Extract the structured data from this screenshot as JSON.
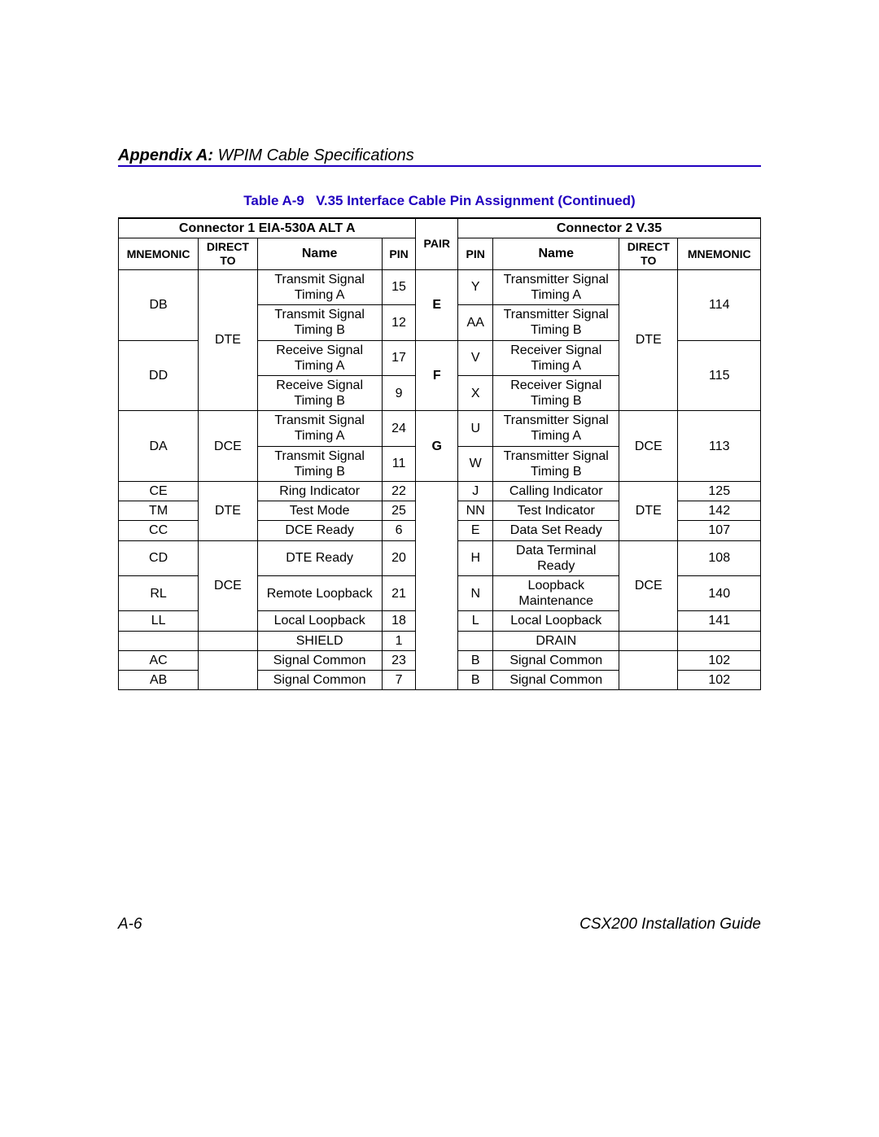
{
  "header": {
    "appendix": "Appendix A:",
    "title_rest": " WPIM Cable Specifications"
  },
  "table": {
    "caption_label": "Table A-9",
    "caption_text": "V.35 Interface Cable Pin Assignment (Continued)",
    "connector1_header": "Connector 1 EIA-530A ALT A",
    "connector2_header": "Connector 2 V.35",
    "col_mnemonic": "MNEMONIC",
    "col_direct_to_line1": "DIRECT",
    "col_direct_to_line2": "TO",
    "col_name": "Name",
    "col_pin": "PIN",
    "col_pair": "PAIR",
    "rows": {
      "r1": {
        "mnem1": "DB",
        "dir1": "DTE",
        "name1": "Transmit Signal Timing A",
        "pin1": "15",
        "pair": "E",
        "pin2": "Y",
        "name2": "Transmitter Signal Timing A",
        "dir2": "DTE",
        "mnem2": "114"
      },
      "r2": {
        "name1": "Transmit Signal Timing B",
        "pin1": "12",
        "pin2": "AA",
        "name2": "Transmitter Signal Timing B"
      },
      "r3": {
        "mnem1": "DD",
        "name1": "Receive Signal Timing A",
        "pin1": "17",
        "pair": "F",
        "pin2": "V",
        "name2": "Receiver Signal Timing A",
        "mnem2": "115"
      },
      "r4": {
        "name1": "Receive Signal Timing B",
        "pin1": "9",
        "pin2": "X",
        "name2": "Receiver Signal Timing B"
      },
      "r5": {
        "mnem1": "DA",
        "dir1": "DCE",
        "name1": "Transmit Signal Timing A",
        "pin1": "24",
        "pair": "G",
        "pin2": "U",
        "name2": "Transmitter Signal Timing A",
        "dir2": "DCE",
        "mnem2": "113"
      },
      "r6": {
        "name1": "Transmit Signal Timing B",
        "pin1": "11",
        "pin2": "W",
        "name2": "Transmitter Signal Timing B"
      },
      "r7": {
        "mnem1": "CE",
        "dir1": "DTE",
        "name1": "Ring Indicator",
        "pin1": "22",
        "pair": "",
        "pin2": "J",
        "name2": "Calling Indicator",
        "dir2": "DTE",
        "mnem2": "125"
      },
      "r8": {
        "mnem1": "TM",
        "name1": "Test Mode",
        "pin1": "25",
        "pin2": "NN",
        "name2": "Test Indicator",
        "mnem2": "142"
      },
      "r9": {
        "mnem1": "CC",
        "name1": "DCE Ready",
        "pin1": "6",
        "pin2": "E",
        "name2": "Data Set Ready",
        "mnem2": "107"
      },
      "r10": {
        "mnem1": "CD",
        "dir1": "DCE",
        "name1": "DTE Ready",
        "pin1": "20",
        "pin2": "H",
        "name2": "Data Terminal Ready",
        "dir2": "DCE",
        "mnem2": "108"
      },
      "r11": {
        "mnem1": "RL",
        "name1": "Remote Loopback",
        "pin1": "21",
        "pin2": "N",
        "name2": "Loopback Maintenance",
        "mnem2": "140"
      },
      "r12": {
        "mnem1": "LL",
        "name1": "Local Loopback",
        "pin1": "18",
        "pin2": "L",
        "name2": "Local Loopback",
        "mnem2": "141"
      },
      "r13": {
        "mnem1": "",
        "dir1": "",
        "name1": "SHIELD",
        "pin1": "1",
        "pin2": "",
        "name2": "DRAIN",
        "dir2": "",
        "mnem2": ""
      },
      "r14": {
        "mnem1": "AC",
        "name1": "Signal Common",
        "pin1": "23",
        "pin2": "B",
        "name2": "Signal Common",
        "mnem2": "102"
      },
      "r15": {
        "mnem1": "AB",
        "name1": "Signal Common",
        "pin1": "7",
        "pin2": "B",
        "name2": "Signal Common",
        "mnem2": "102"
      }
    }
  },
  "footer": {
    "left": "A-6",
    "right": "CSX200 Installation Guide"
  }
}
